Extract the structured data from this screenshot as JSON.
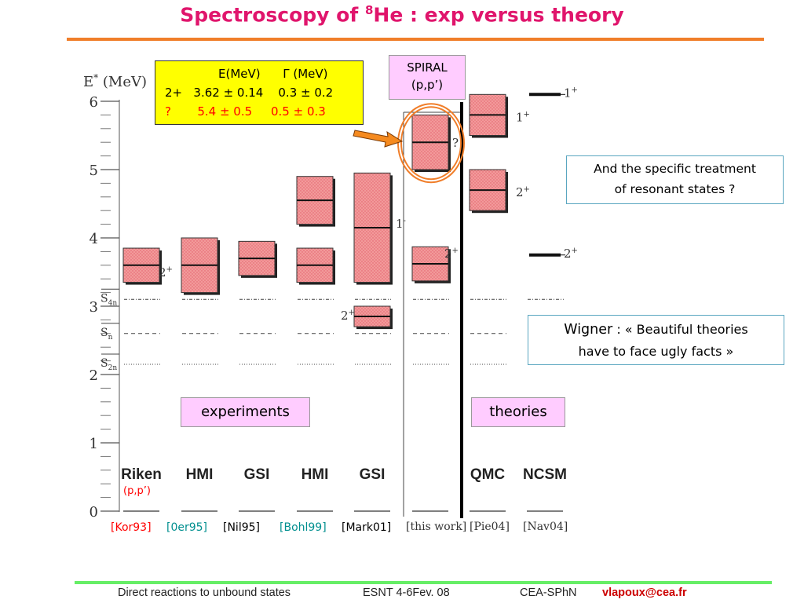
{
  "slide": {
    "title_pre": "Spectroscopy of ",
    "title_sup": "8",
    "title_post": "He : exp versus theory"
  },
  "legend_table": {
    "header": "E(MeV)      Γ (MeV)",
    "row1": "2+   3.62 ± 0.14    0.3 ± 0.2",
    "row2": "?       5.4 ± 0.5     0.5 ± 0.3",
    "row2_color": "#ff0000",
    "background": "#ffff00"
  },
  "spiral_box": {
    "line1": "SPIRAL",
    "line2": "(p,p’)"
  },
  "note_box": {
    "line1": "And the specific treatment",
    "line2": "of resonant states ?"
  },
  "quote_box": {
    "wigner": "Wigner",
    "sep": " : « ",
    "line1": "Beautiful  theories",
    "line2": "have to face ugly facts »"
  },
  "tags": {
    "experiments": "experiments",
    "theories": "theories"
  },
  "riken_sub": "(p,p’)",
  "references": [
    {
      "text": "[Kor93]",
      "color": "#ff0000"
    },
    {
      "text": "[0er95]",
      "color": "#008f8f"
    },
    {
      "text": "[Nil95]",
      "color": "#000000"
    },
    {
      "text": "[Bohl99]",
      "color": "#008f8f"
    },
    {
      "text": "[Mark01]",
      "color": "#000000"
    }
  ],
  "references_plot": [
    "[this work]",
    "[Pie04]",
    "[Nav04]"
  ],
  "footer": {
    "left": "Direct reactions to unbound states",
    "mid": "ESNT 4-6Fev. 08",
    "org": "CEA-SPhN",
    "email": "vlapoux@cea.fr"
  },
  "chart_data": {
    "type": "level-scheme",
    "ylabel": "E* (MeV)",
    "ylim": [
      0,
      6
    ],
    "yticks": [
      0,
      1,
      2,
      3,
      4,
      5,
      6
    ],
    "thresholds": [
      {
        "label": "S4n",
        "label_main": "S",
        "label_sub": "4n",
        "value": 3.1,
        "style": "dashdot"
      },
      {
        "label": "Sn",
        "label_main": "S",
        "label_sub": "n",
        "value": 2.6,
        "style": "dashed"
      },
      {
        "label": "S2n",
        "label_main": "S",
        "label_sub": "2n",
        "value": 2.15,
        "style": "dotted"
      }
    ],
    "columns": [
      {
        "name": "Riken",
        "group": "experiment",
        "levels": [
          {
            "energy": 3.6,
            "width": 0.5,
            "jpi": "2+"
          }
        ]
      },
      {
        "name": "HMI",
        "group": "experiment",
        "levels": [
          {
            "energy": 3.6,
            "width": 0.8,
            "jpi": ""
          }
        ]
      },
      {
        "name": "GSI",
        "group": "experiment",
        "levels": [
          {
            "energy": 3.7,
            "width": 0.5,
            "jpi": ""
          }
        ]
      },
      {
        "name": "HMI",
        "group": "experiment",
        "levels": [
          {
            "energy": 4.55,
            "width": 0.7,
            "jpi": ""
          },
          {
            "energy": 3.6,
            "width": 0.5,
            "jpi": ""
          }
        ]
      },
      {
        "name": "GSI",
        "group": "experiment",
        "levels": [
          {
            "energy": 4.15,
            "width": 1.6,
            "jpi": "1-"
          },
          {
            "energy": 2.85,
            "width": 0.3,
            "jpi": "2+"
          }
        ]
      },
      {
        "name": "",
        "group": "this work",
        "levels": [
          {
            "energy": 5.4,
            "width": 0.8,
            "jpi": "?"
          },
          {
            "energy": 3.62,
            "width": 0.5,
            "jpi": "2+"
          }
        ]
      },
      {
        "name": "QMC",
        "group": "theory",
        "levels": [
          {
            "energy": 5.8,
            "width": 0.6,
            "jpi": "1+"
          },
          {
            "energy": 4.7,
            "width": 0.6,
            "jpi": "2+"
          }
        ]
      },
      {
        "name": "NCSM",
        "group": "theory",
        "levels": [
          {
            "energy": 6.1,
            "width": 0,
            "jpi": "1+"
          },
          {
            "energy": 3.75,
            "width": 0,
            "jpi": "2+"
          }
        ]
      }
    ]
  }
}
